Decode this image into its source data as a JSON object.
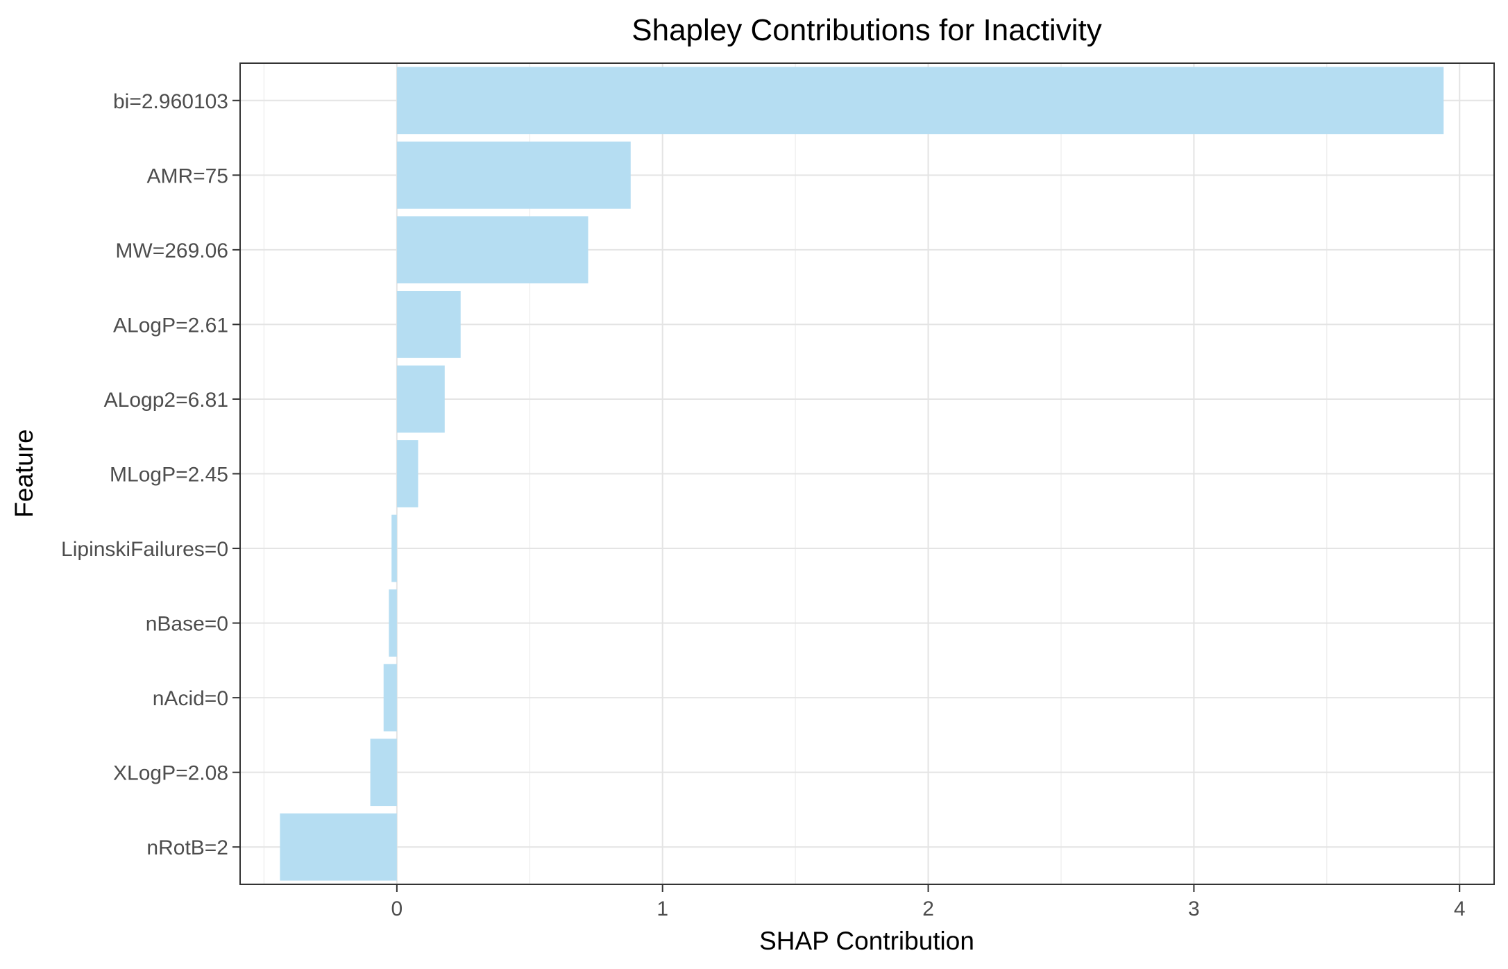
{
  "chart_data": {
    "type": "bar",
    "orientation": "horizontal",
    "title": "Shapley Contributions for Inactivity",
    "xlabel": "SHAP Contribution",
    "ylabel": "Feature",
    "categories": [
      "bi=2.960103",
      "AMR=75",
      "MW=269.06",
      "ALogP=2.61",
      "ALogp2=6.81",
      "MLogP=2.45",
      "LipinskiFailures=0",
      "nBase=0",
      "nAcid=0",
      "XLogP=2.08",
      "nRotB=2"
    ],
    "values": [
      3.94,
      0.88,
      0.72,
      0.24,
      0.18,
      0.08,
      -0.02,
      -0.03,
      -0.05,
      -0.1,
      -0.44
    ],
    "xlim": [
      -0.59,
      4.13
    ],
    "xticks": [
      0,
      1,
      2,
      3,
      4
    ],
    "xtick_labels": [
      "0",
      "1",
      "2",
      "3",
      "4"
    ],
    "grid": true,
    "legend": "none",
    "colors": {
      "bar": "#b5ddf2",
      "grid_major": "#e4e4e4",
      "grid_minor": "#f0f0f0",
      "frame": "#333333",
      "tick_text": "#4d4d4d",
      "title_text": "#000000"
    }
  }
}
